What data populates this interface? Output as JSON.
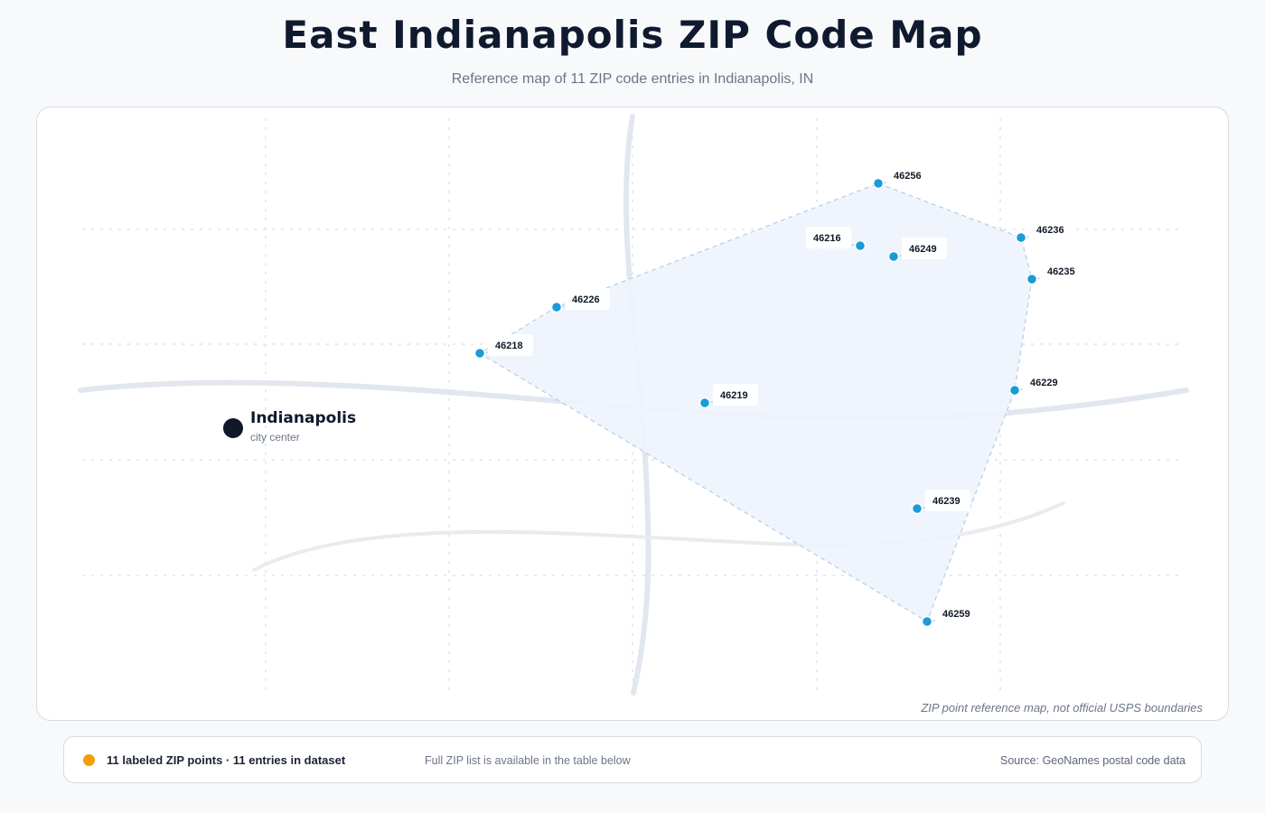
{
  "header": {
    "title": "East Indianapolis ZIP Code Map",
    "subtitle": "Reference map of 11 ZIP code entries in Indianapolis, IN"
  },
  "map": {
    "city": {
      "name": "Indianapolis",
      "sublabel": "city center"
    },
    "disclaimer": "ZIP point reference map, not official USPS boundaries",
    "zip_points": [
      "46256",
      "46236",
      "46216",
      "46249",
      "46235",
      "46226",
      "46218",
      "46219",
      "46229",
      "46239",
      "46259"
    ],
    "colors": {
      "point": "#1b9bd8",
      "region_fill": "#eef4fd",
      "region_stroke": "#b9cfee",
      "road": "#e2e7ef",
      "city_marker": "#111827"
    }
  },
  "footer": {
    "count_text": "11 labeled ZIP points · 11 entries in dataset",
    "note": "Full ZIP list is available in the table below",
    "source": "Source: GeoNames postal code data",
    "dot_color": "#f59e0b"
  }
}
